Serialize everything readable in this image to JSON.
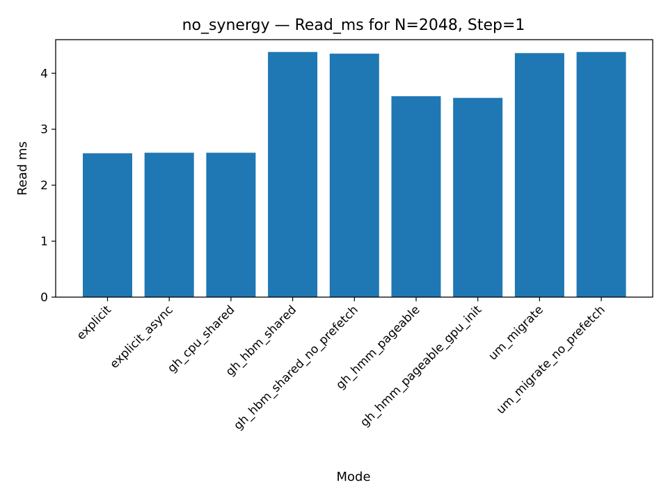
{
  "chart_data": {
    "type": "bar",
    "title": "no_synergy — Read_ms for N=2048, Step=1",
    "xlabel": "Mode",
    "ylabel": "Read ms",
    "categories": [
      "explicit",
      "explicit_async",
      "gh_cpu_shared",
      "gh_hbm_shared",
      "gh_hbm_shared_no_prefetch",
      "gh_hmm_pageable",
      "gh_hmm_pageable_gpu_init",
      "um_migrate",
      "um_migrate_no_prefetch"
    ],
    "values": [
      2.57,
      2.58,
      2.58,
      4.38,
      4.35,
      3.59,
      3.56,
      4.36,
      4.38
    ],
    "ylim": [
      0,
      4.6
    ],
    "yticks": [
      0,
      1,
      2,
      3,
      4
    ],
    "bar_color": "#1f77b4",
    "grid": false,
    "legend": "none"
  }
}
